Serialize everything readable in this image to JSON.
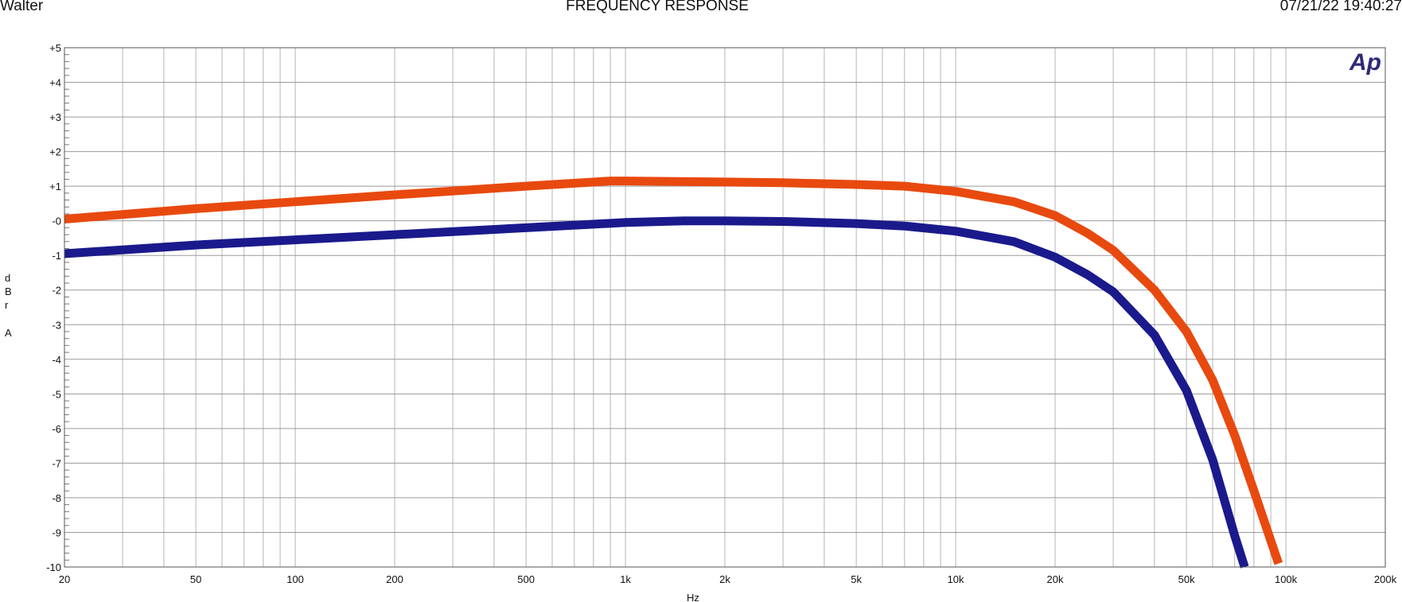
{
  "header": {
    "left": "Walter",
    "title": "FREQUENCY RESPONSE",
    "timestamp": "07/21/22 19:40:27"
  },
  "axis": {
    "y_label_letters": [
      "d",
      "B",
      "r",
      "A"
    ],
    "x_label": "Hz",
    "x_ticks": [
      {
        "v": 20,
        "label": "20"
      },
      {
        "v": 50,
        "label": "50"
      },
      {
        "v": 100,
        "label": "100"
      },
      {
        "v": 200,
        "label": "200"
      },
      {
        "v": 500,
        "label": "500"
      },
      {
        "v": 1000,
        "label": "1k"
      },
      {
        "v": 2000,
        "label": "2k"
      },
      {
        "v": 5000,
        "label": "5k"
      },
      {
        "v": 10000,
        "label": "10k"
      },
      {
        "v": 20000,
        "label": "20k"
      },
      {
        "v": 50000,
        "label": "50k"
      },
      {
        "v": 100000,
        "label": "100k"
      },
      {
        "v": 200000,
        "label": "200k"
      }
    ],
    "y_ticks": [
      {
        "v": 5,
        "label": "+5"
      },
      {
        "v": 4,
        "label": "+4"
      },
      {
        "v": 3,
        "label": "+3"
      },
      {
        "v": 2,
        "label": "+2"
      },
      {
        "v": 1,
        "label": "+1"
      },
      {
        "v": 0,
        "label": "-0"
      },
      {
        "v": -1,
        "label": "-1"
      },
      {
        "v": -2,
        "label": "-2"
      },
      {
        "v": -3,
        "label": "-3"
      },
      {
        "v": -4,
        "label": "-4"
      },
      {
        "v": -5,
        "label": "-5"
      },
      {
        "v": -6,
        "label": "-6"
      },
      {
        "v": -7,
        "label": "-7"
      },
      {
        "v": -8,
        "label": "-8"
      },
      {
        "v": -9,
        "label": "-9"
      },
      {
        "v": -10,
        "label": "-10"
      }
    ]
  },
  "logo": {
    "text": "Ap",
    "color": "#2e2a7a"
  },
  "chart_data": {
    "type": "line",
    "title": "FREQUENCY RESPONSE",
    "xlabel": "Hz",
    "ylabel": "dBrA",
    "x_scale": "log",
    "xlim": [
      20,
      200000
    ],
    "ylim": [
      -10,
      5
    ],
    "grid": true,
    "series": [
      {
        "color": "#e8490f",
        "x": [
          20,
          50,
          100,
          200,
          500,
          900,
          1000,
          2000,
          3000,
          5000,
          7000,
          10000,
          15000,
          20000,
          25000,
          30000,
          40000,
          50000,
          60000,
          70000,
          80000,
          95000
        ],
        "y": [
          0.05,
          0.35,
          0.55,
          0.75,
          1.0,
          1.15,
          1.15,
          1.12,
          1.1,
          1.05,
          1.0,
          0.85,
          0.55,
          0.15,
          -0.35,
          -0.85,
          -2.0,
          -3.2,
          -4.6,
          -6.2,
          -7.8,
          -9.9
        ]
      },
      {
        "color": "#1a1a8c",
        "x": [
          20,
          50,
          100,
          200,
          500,
          1000,
          1500,
          2000,
          3000,
          5000,
          7000,
          10000,
          15000,
          20000,
          25000,
          30000,
          40000,
          50000,
          60000,
          70000,
          75000
        ],
        "y": [
          -0.95,
          -0.7,
          -0.55,
          -0.4,
          -0.2,
          -0.05,
          0.0,
          0.0,
          -0.02,
          -0.08,
          -0.15,
          -0.3,
          -0.6,
          -1.05,
          -1.55,
          -2.05,
          -3.3,
          -4.9,
          -6.9,
          -9.1,
          -10.0
        ]
      }
    ]
  }
}
